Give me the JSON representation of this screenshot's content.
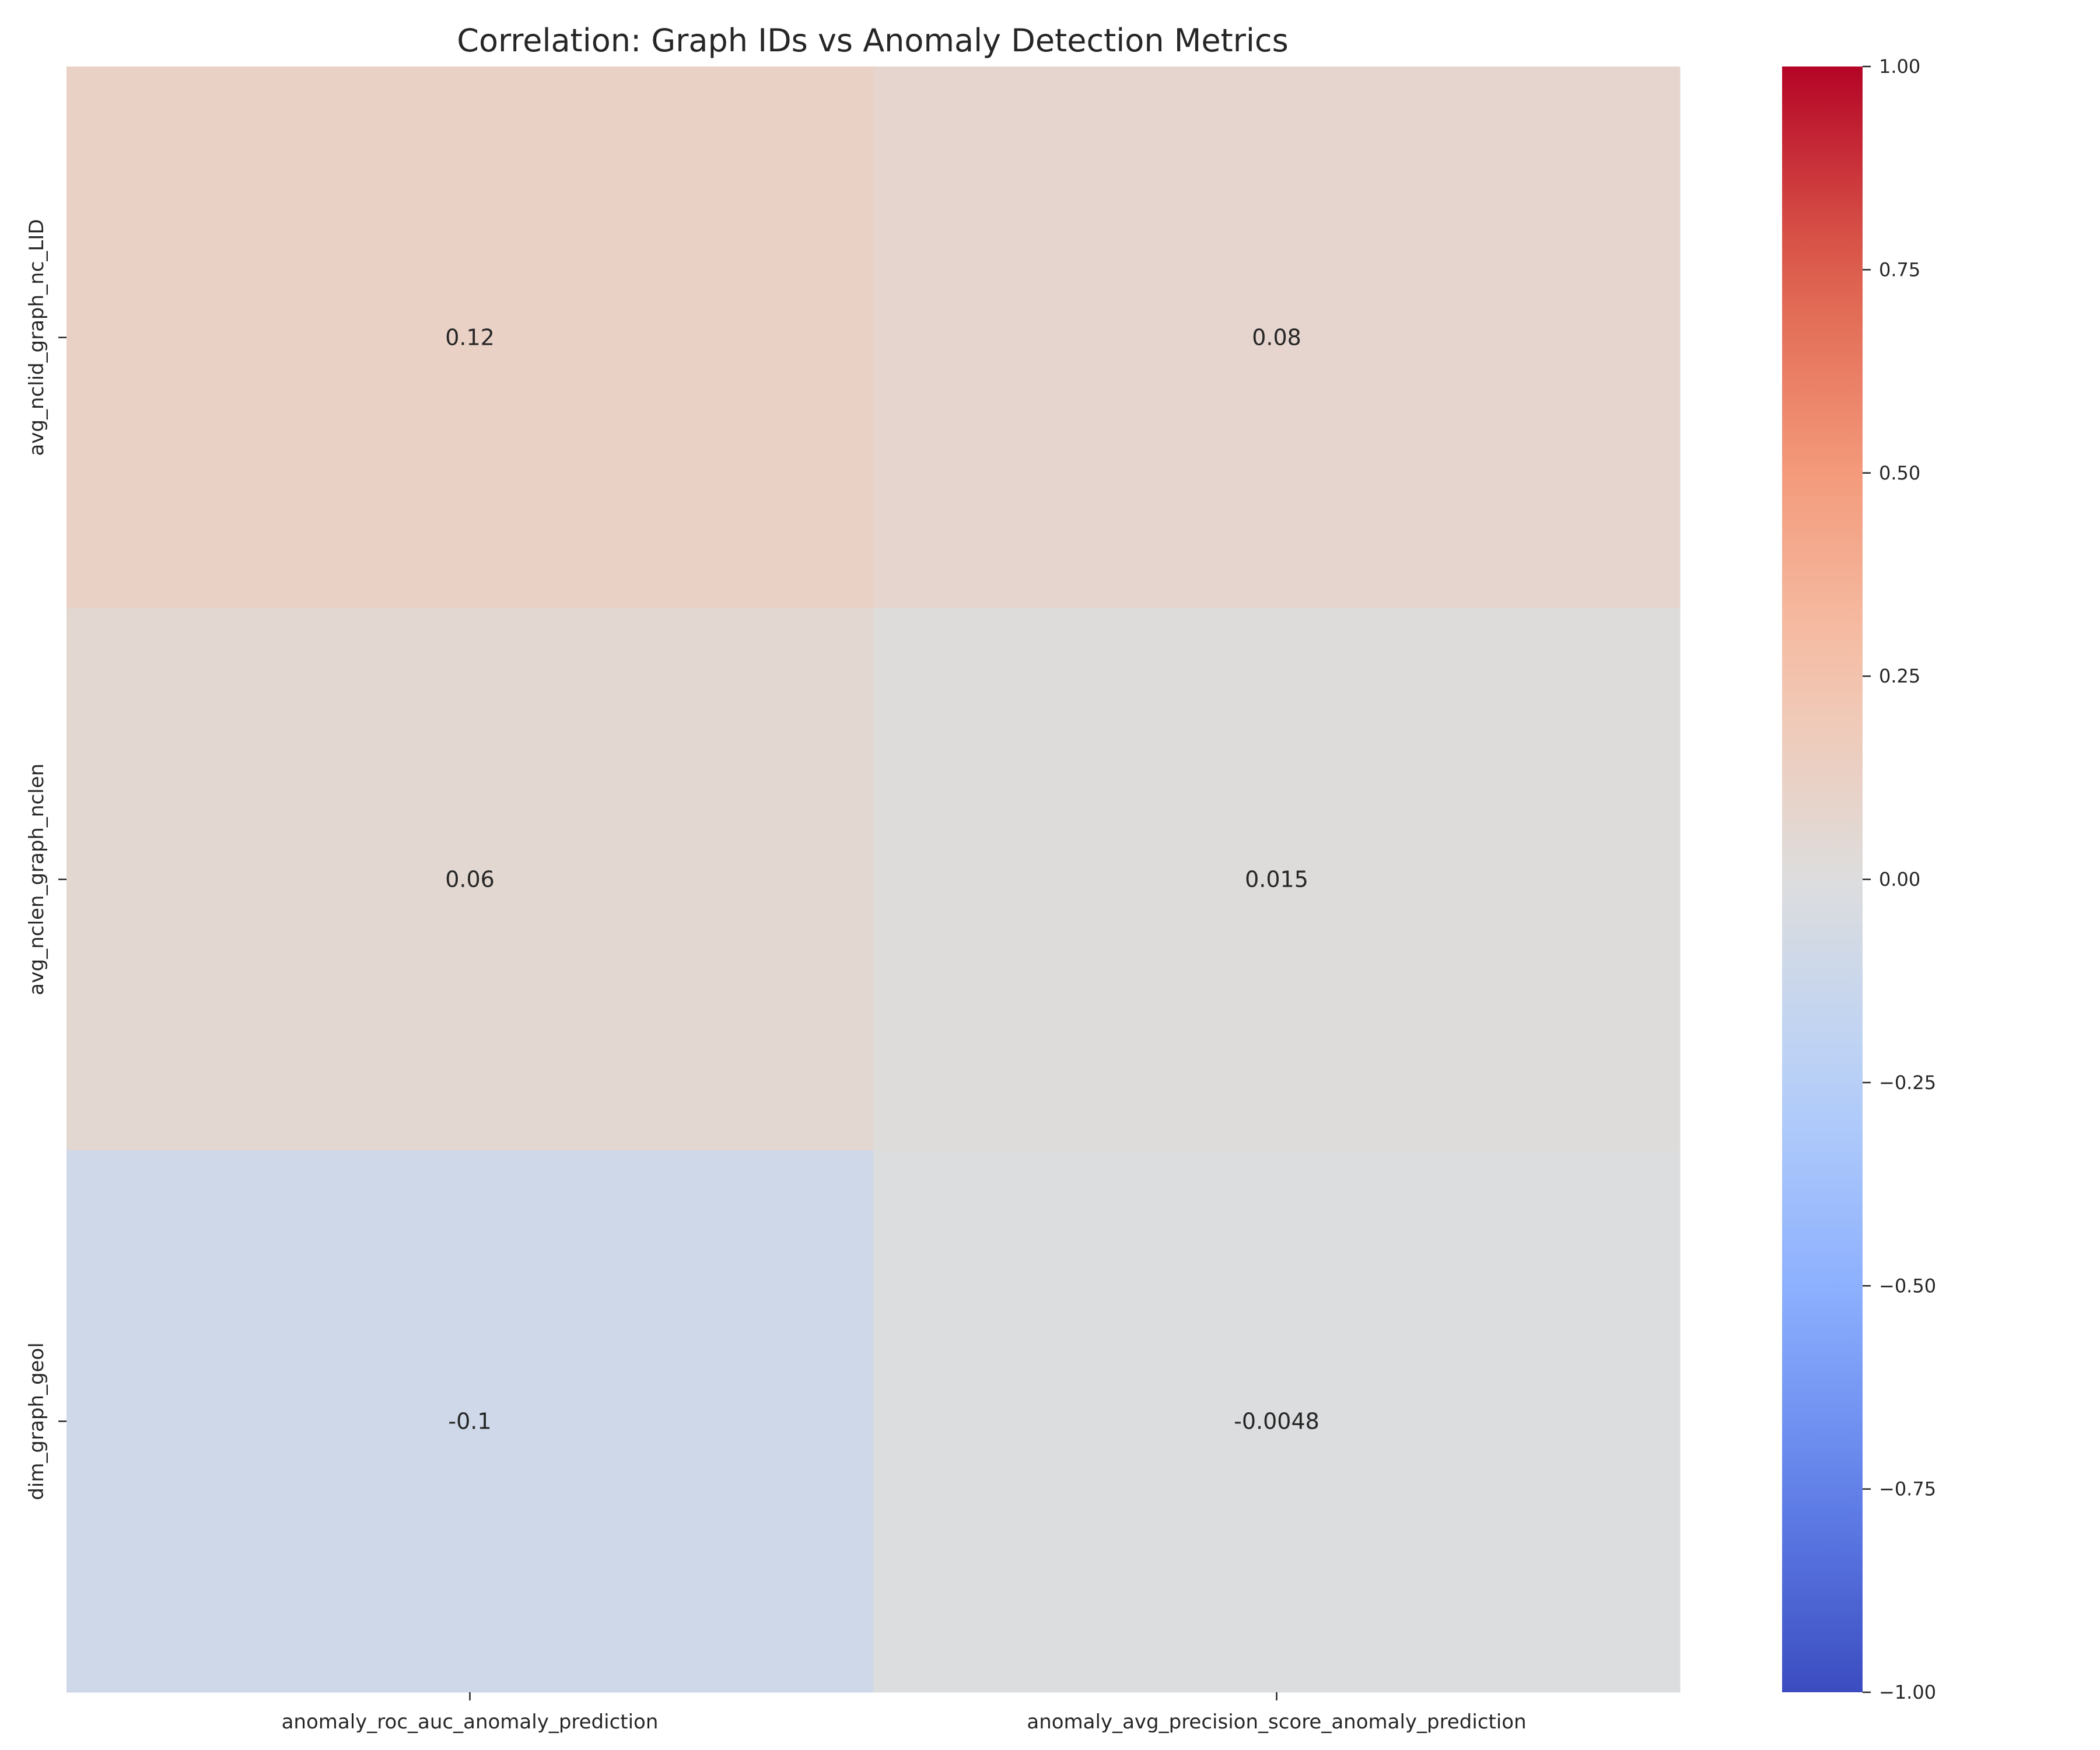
{
  "chart_data": {
    "type": "heatmap",
    "title": "Correlation: Graph IDs vs Anomaly Detection Metrics",
    "xlabel": "",
    "ylabel": "",
    "columns": [
      "anomaly_roc_auc_anomaly_prediction",
      "anomaly_avg_precision_score_anomaly_prediction"
    ],
    "rows": [
      "avg_nclid_graph_nc_LID",
      "avg_nclen_graph_nclen",
      "dim_graph_geol"
    ],
    "values": [
      [
        0.12,
        0.08
      ],
      [
        0.06,
        0.015
      ],
      [
        -0.1,
        -0.0048
      ]
    ],
    "annotations": [
      [
        "0.12",
        "0.08"
      ],
      [
        "0.06",
        "0.015"
      ],
      [
        "-0.1",
        "-0.0048"
      ]
    ],
    "colorbar": {
      "colormap": "coolwarm",
      "vmin": -1.0,
      "vmax": 1.0,
      "ticks": [
        1.0,
        0.75,
        0.5,
        0.25,
        0.0,
        -0.25,
        -0.5,
        -0.75,
        -1.0
      ],
      "tick_labels": [
        "1.00",
        "0.75",
        "0.50",
        "0.25",
        "0.00",
        "−0.25",
        "−0.50",
        "−0.75",
        "−1.00"
      ]
    },
    "grid": false
  },
  "colors": {
    "text": "#262626",
    "background": "#ffffff"
  }
}
